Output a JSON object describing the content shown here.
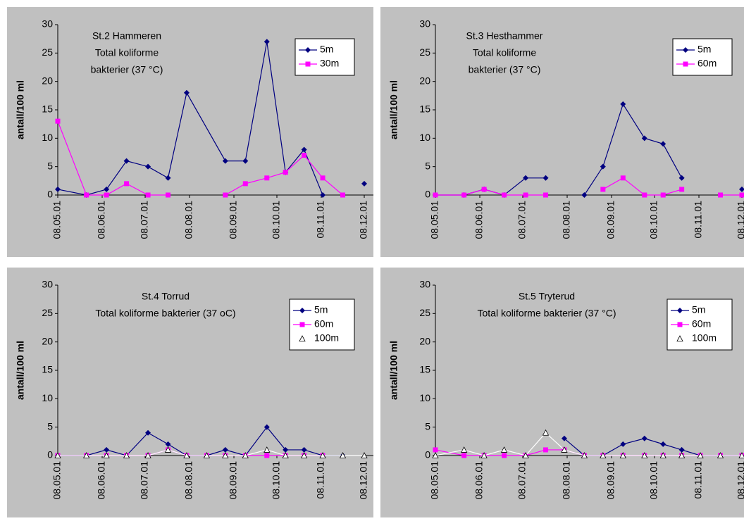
{
  "chart_data": [
    {
      "type": "line",
      "title": [
        "St.2 Hammeren",
        "Total koliforme",
        "bakterier (37 °C)"
      ],
      "ylabel": "antall/100 ml",
      "x": [
        "08.05.01",
        "28.05.01",
        "11.06.01",
        "25.06.01",
        "10.07.01",
        "24.07.01",
        "06.08.01",
        "02.09.01",
        "16.09.01",
        "01.10.01",
        "14.10.01",
        "27.10.01",
        "09.11.01",
        "23.11.01",
        "08.12.01"
      ],
      "xlim": [
        "08.05.01",
        "08.12.01"
      ],
      "xticks": [
        "08.05.01",
        "08.06.01",
        "08.07.01",
        "08.08.01",
        "08.09.01",
        "08.10.01",
        "08.11.01",
        "08.12.01"
      ],
      "ylim": [
        0,
        30
      ],
      "yticks": [
        0,
        5,
        10,
        15,
        20,
        25,
        30
      ],
      "legend": "top-right",
      "series": [
        {
          "name": "5m",
          "color": "#000080",
          "marker": "diamond",
          "values": [
            1,
            0,
            1,
            6,
            5,
            3,
            18,
            6,
            6,
            27,
            4,
            8,
            0,
            null,
            2
          ]
        },
        {
          "name": "30m",
          "color": "#ff00ff",
          "marker": "square",
          "values": [
            13,
            0,
            0,
            2,
            0,
            0,
            null,
            0,
            2,
            3,
            4,
            7,
            3,
            0,
            null
          ]
        }
      ]
    },
    {
      "type": "line",
      "title": [
        "St.3 Hesthammer",
        "Total koliforme",
        "bakterier (37 °C)"
      ],
      "ylabel": "antall/100 ml",
      "x": [
        "08.05.01",
        "28.05.01",
        "11.06.01",
        "25.06.01",
        "10.07.01",
        "24.07.01",
        "06.08.01",
        "20.08.01",
        "02.09.01",
        "16.09.01",
        "01.10.01",
        "14.10.01",
        "27.10.01",
        "09.11.01",
        "23.11.01",
        "08.12.01"
      ],
      "xlim": [
        "08.05.01",
        "08.12.01"
      ],
      "xticks": [
        "08.05.01",
        "08.06.01",
        "08.07.01",
        "08.08.01",
        "08.09.01",
        "08.10.01",
        "08.11.01",
        "08.12.01"
      ],
      "ylim": [
        0,
        30
      ],
      "yticks": [
        0,
        5,
        10,
        15,
        20,
        25,
        30
      ],
      "legend": "top-right",
      "series": [
        {
          "name": "5m",
          "color": "#000080",
          "marker": "diamond",
          "values": [
            0,
            0,
            1,
            0,
            3,
            3,
            null,
            0,
            5,
            16,
            10,
            9,
            3,
            null,
            null,
            1
          ]
        },
        {
          "name": "60m",
          "color": "#ff00ff",
          "marker": "square",
          "values": [
            0,
            0,
            1,
            0,
            0,
            0,
            null,
            null,
            1,
            3,
            0,
            0,
            1,
            null,
            0,
            0
          ]
        }
      ]
    },
    {
      "type": "line",
      "title": [
        "St.4 Torrud",
        "Total koliforme bakterier (37 oC)"
      ],
      "ylabel": "antall/100 ml",
      "x": [
        "08.05.01",
        "28.05.01",
        "11.06.01",
        "25.06.01",
        "10.07.01",
        "24.07.01",
        "06.08.01",
        "20.08.01",
        "02.09.01",
        "16.09.01",
        "01.10.01",
        "14.10.01",
        "27.10.01",
        "09.11.01",
        "23.11.01",
        "08.12.01"
      ],
      "xlim": [
        "08.05.01",
        "08.12.01"
      ],
      "xticks": [
        "08.05.01",
        "08.06.01",
        "08.07.01",
        "08.08.01",
        "08.09.01",
        "08.10.01",
        "08.11.01",
        "08.12.01"
      ],
      "ylim": [
        0,
        30
      ],
      "yticks": [
        0,
        5,
        10,
        15,
        20,
        25,
        30
      ],
      "legend": "top-right",
      "series": [
        {
          "name": "5m",
          "color": "#000080",
          "marker": "diamond",
          "values": [
            0,
            0,
            1,
            0,
            4,
            2,
            0,
            0,
            1,
            0,
            5,
            1,
            1,
            0,
            0,
            null
          ]
        },
        {
          "name": "60m",
          "color": "#ff00ff",
          "marker": "square",
          "values": [
            0,
            0,
            0,
            0,
            0,
            1,
            0,
            0,
            0,
            0,
            0,
            0,
            0,
            0,
            null,
            null
          ]
        },
        {
          "name": "100m",
          "color": "#ffffff",
          "marker": "triangle",
          "values": [
            0,
            0,
            0,
            0,
            0,
            1,
            0,
            0,
            0,
            0,
            1,
            0,
            0,
            0,
            0,
            0
          ]
        }
      ]
    },
    {
      "type": "line",
      "title": [
        "St.5 Tryterud",
        "Total koliforme bakterier (37 °C)"
      ],
      "ylabel": "antall/100 ml",
      "x": [
        "08.05.01",
        "28.05.01",
        "11.06.01",
        "25.06.01",
        "10.07.01",
        "24.07.01",
        "06.08.01",
        "20.08.01",
        "02.09.01",
        "16.09.01",
        "01.10.01",
        "14.10.01",
        "27.10.01",
        "09.11.01",
        "23.11.01",
        "08.12.01"
      ],
      "xlim": [
        "08.05.01",
        "08.12.01"
      ],
      "xticks": [
        "08.05.01",
        "08.06.01",
        "08.07.01",
        "08.08.01",
        "08.09.01",
        "08.10.01",
        "08.11.01",
        "08.12.01"
      ],
      "ylim": [
        0,
        30
      ],
      "yticks": [
        0,
        5,
        10,
        15,
        20,
        25,
        30
      ],
      "legend": "top-right",
      "series": [
        {
          "name": "5m",
          "color": "#000080",
          "marker": "diamond",
          "values": [
            null,
            null,
            null,
            null,
            null,
            null,
            3,
            0,
            0,
            2,
            3,
            2,
            1,
            0,
            0,
            0
          ]
        },
        {
          "name": "60m",
          "color": "#ff00ff",
          "marker": "square",
          "values": [
            1,
            0,
            0,
            0,
            0,
            1,
            1,
            0,
            0,
            0,
            0,
            0,
            0,
            0,
            0,
            0
          ]
        },
        {
          "name": "100m",
          "color": "#ffffff",
          "marker": "triangle",
          "values": [
            0,
            1,
            0,
            1,
            0,
            4,
            1,
            0,
            0,
            0,
            0,
            0,
            0,
            0,
            0,
            0
          ]
        }
      ]
    }
  ]
}
